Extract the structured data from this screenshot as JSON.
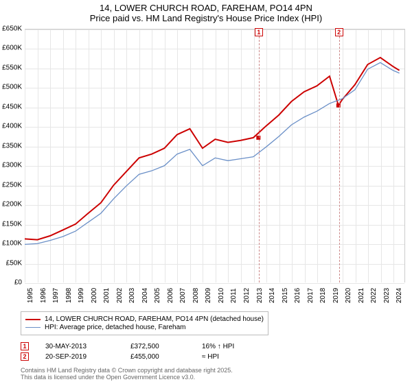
{
  "title_line1": "14, LOWER CHURCH ROAD, FAREHAM, PO14 4PN",
  "title_line2": "Price paid vs. HM Land Registry's House Price Index (HPI)",
  "chart": {
    "type": "line",
    "background_color": "#ffffff",
    "grid_color": "#e6e6e6",
    "x_years": [
      1995,
      1996,
      1997,
      1998,
      1999,
      2000,
      2001,
      2002,
      2003,
      2004,
      2005,
      2006,
      2007,
      2008,
      2009,
      2010,
      2011,
      2012,
      2013,
      2014,
      2015,
      2016,
      2017,
      2018,
      2019,
      2020,
      2021,
      2022,
      2023,
      2024
    ],
    "ylim": [
      0,
      650
    ],
    "y_ticks": [
      0,
      50,
      100,
      150,
      200,
      250,
      300,
      350,
      400,
      450,
      500,
      550,
      600,
      650
    ],
    "y_prefix": "£",
    "y_suffix": "K",
    "series": [
      {
        "name": "price_paid",
        "label": "14, LOWER CHURCH ROAD, FAREHAM, PO14 4PN (detached house)",
        "color": "#cc0000",
        "width": 2,
        "data": [
          [
            1995,
            112
          ],
          [
            1996,
            110
          ],
          [
            1997,
            120
          ],
          [
            1998,
            135
          ],
          [
            1999,
            150
          ],
          [
            2000,
            178
          ],
          [
            2001,
            205
          ],
          [
            2002,
            250
          ],
          [
            2003,
            285
          ],
          [
            2004,
            320
          ],
          [
            2005,
            330
          ],
          [
            2006,
            345
          ],
          [
            2007,
            380
          ],
          [
            2008,
            395
          ],
          [
            2009,
            345
          ],
          [
            2010,
            368
          ],
          [
            2011,
            360
          ],
          [
            2012,
            365
          ],
          [
            2013,
            372
          ],
          [
            2014,
            402
          ],
          [
            2015,
            430
          ],
          [
            2016,
            465
          ],
          [
            2017,
            490
          ],
          [
            2018,
            505
          ],
          [
            2019,
            530
          ],
          [
            2019.7,
            455
          ],
          [
            2020,
            470
          ],
          [
            2021,
            508
          ],
          [
            2022,
            560
          ],
          [
            2023,
            578
          ],
          [
            2024,
            555
          ],
          [
            2024.5,
            545
          ]
        ]
      },
      {
        "name": "hpi",
        "label": "HPI: Average price, detached house, Fareham",
        "color": "#6a8fc7",
        "width": 1.3,
        "data": [
          [
            1995,
            98
          ],
          [
            1996,
            100
          ],
          [
            1997,
            108
          ],
          [
            1998,
            118
          ],
          [
            1999,
            132
          ],
          [
            2000,
            155
          ],
          [
            2001,
            178
          ],
          [
            2002,
            215
          ],
          [
            2003,
            248
          ],
          [
            2004,
            278
          ],
          [
            2005,
            287
          ],
          [
            2006,
            300
          ],
          [
            2007,
            330
          ],
          [
            2008,
            342
          ],
          [
            2009,
            300
          ],
          [
            2010,
            320
          ],
          [
            2011,
            313
          ],
          [
            2012,
            318
          ],
          [
            2013,
            323
          ],
          [
            2014,
            348
          ],
          [
            2015,
            375
          ],
          [
            2016,
            405
          ],
          [
            2017,
            425
          ],
          [
            2018,
            440
          ],
          [
            2019,
            460
          ],
          [
            2020,
            472
          ],
          [
            2021,
            495
          ],
          [
            2022,
            548
          ],
          [
            2023,
            565
          ],
          [
            2024,
            545
          ],
          [
            2024.5,
            538
          ]
        ]
      }
    ],
    "markers": [
      {
        "num": "1",
        "x_year": 2013.4,
        "y_val": 372
      },
      {
        "num": "2",
        "x_year": 2019.7,
        "y_val": 455
      }
    ]
  },
  "legend": {
    "items": [
      {
        "color": "#cc0000",
        "width": 2,
        "label": "14, LOWER CHURCH ROAD, FAREHAM, PO14 4PN (detached house)"
      },
      {
        "color": "#6a8fc7",
        "width": 1.3,
        "label": "HPI: Average price, detached house, Fareham"
      }
    ]
  },
  "transactions": [
    {
      "num": "1",
      "date": "30-MAY-2013",
      "price": "£372,500",
      "rel": "16% ↑ HPI"
    },
    {
      "num": "2",
      "date": "20-SEP-2019",
      "price": "£455,000",
      "rel": "≈ HPI"
    }
  ],
  "footer_line1": "Contains HM Land Registry data © Crown copyright and database right 2025.",
  "footer_line2": "This data is licensed under the Open Government Licence v3.0."
}
